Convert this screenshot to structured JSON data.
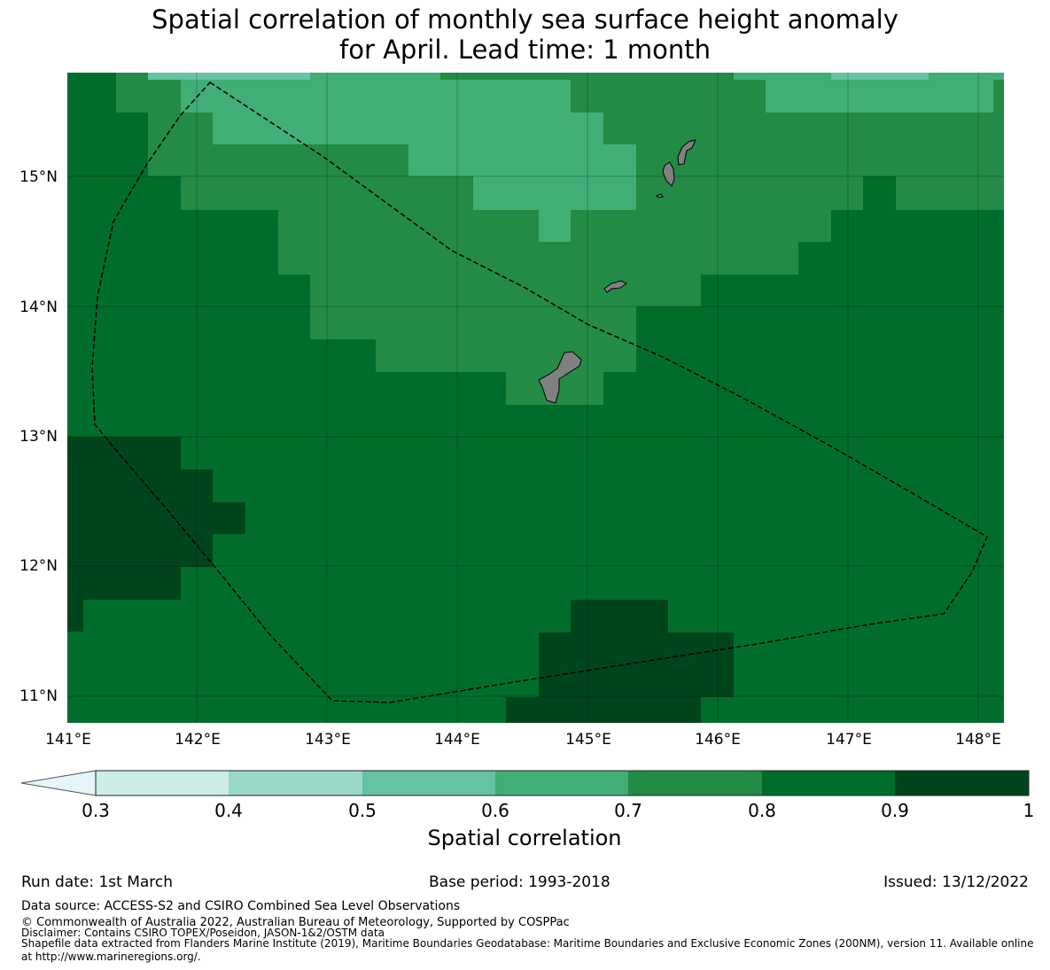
{
  "title": {
    "line1": "Spatial correlation of monthly sea surface height anomaly",
    "line2": "for April. Lead time: 1 month"
  },
  "map": {
    "lon_labels": [
      "141°E",
      "142°E",
      "143°E",
      "144°E",
      "145°E",
      "146°E",
      "147°E",
      "148°E"
    ],
    "lat_labels": [
      "15°N",
      "14°N",
      "13°N",
      "12°N",
      "11°N"
    ],
    "land_color": "#808080",
    "boundary_style": "dashed black line (EEZ)"
  },
  "colorbar": {
    "ticks": [
      "0.3",
      "0.4",
      "0.5",
      "0.6",
      "0.7",
      "0.8",
      "0.9",
      "1"
    ],
    "colors": [
      "#ccece6",
      "#99d8c9",
      "#66c2a4",
      "#41ae76",
      "#238b45",
      "#006d2c",
      "#00441b"
    ],
    "under_color": "#e5f5f9",
    "label": "Spatial correlation"
  },
  "footer": {
    "run_date": "Run date: 1st March",
    "base_period": "Base period: 1993-2018",
    "issued": "Issued: 13/12/2022",
    "data_source": "Data source: ACCESS-S2 and CSIRO Combined Sea Level Observations",
    "copyright": "© Commonwealth of Australia 2022, Australian Bureau of Meteorology, Supported by COSPPac",
    "disclaimer": "Disclaimer: Contains CSIRO TOPEX/Poseidon, JASON-1&2/OSTM data",
    "shapefile1": "Shapefile data extracted from Flanders Marine Institute (2019), Maritime Boundaries Geodatabase: Maritime Boundaries and Exclusive Economic Zones (200NM), version 11. Available online",
    "shapefile2": "at http://www.marineregions.org/."
  }
}
